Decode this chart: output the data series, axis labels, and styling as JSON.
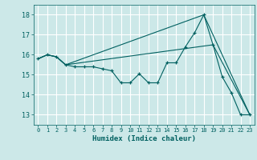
{
  "xlabel": "Humidex (Indice chaleur)",
  "bg_color": "#cce8e8",
  "line_color": "#006060",
  "grid_color": "#ffffff",
  "xlim": [
    -0.5,
    23.5
  ],
  "ylim": [
    12.5,
    18.5
  ],
  "yticks": [
    13,
    14,
    15,
    16,
    17,
    18
  ],
  "xticks": [
    0,
    1,
    2,
    3,
    4,
    5,
    6,
    7,
    8,
    9,
    10,
    11,
    12,
    13,
    14,
    15,
    16,
    17,
    18,
    19,
    20,
    21,
    22,
    23
  ],
  "line1_x": [
    0,
    1,
    2,
    3,
    4,
    5,
    6,
    7,
    8,
    9,
    10,
    11,
    12,
    13,
    14,
    15,
    16,
    17,
    18,
    19,
    20,
    21,
    22,
    23
  ],
  "line1_y": [
    15.8,
    16.0,
    15.9,
    15.5,
    15.4,
    15.4,
    15.4,
    15.3,
    15.2,
    14.6,
    14.6,
    15.05,
    14.6,
    14.6,
    15.6,
    15.6,
    16.4,
    17.1,
    18.0,
    16.5,
    14.9,
    14.1,
    13.0,
    13.0
  ],
  "line2_x": [
    0,
    1,
    2,
    3,
    18,
    23
  ],
  "line2_y": [
    15.8,
    16.0,
    15.9,
    15.5,
    18.0,
    13.0
  ],
  "line3_x": [
    0,
    1,
    2,
    3,
    19,
    23
  ],
  "line3_y": [
    15.8,
    16.0,
    15.9,
    15.5,
    16.5,
    13.0
  ]
}
